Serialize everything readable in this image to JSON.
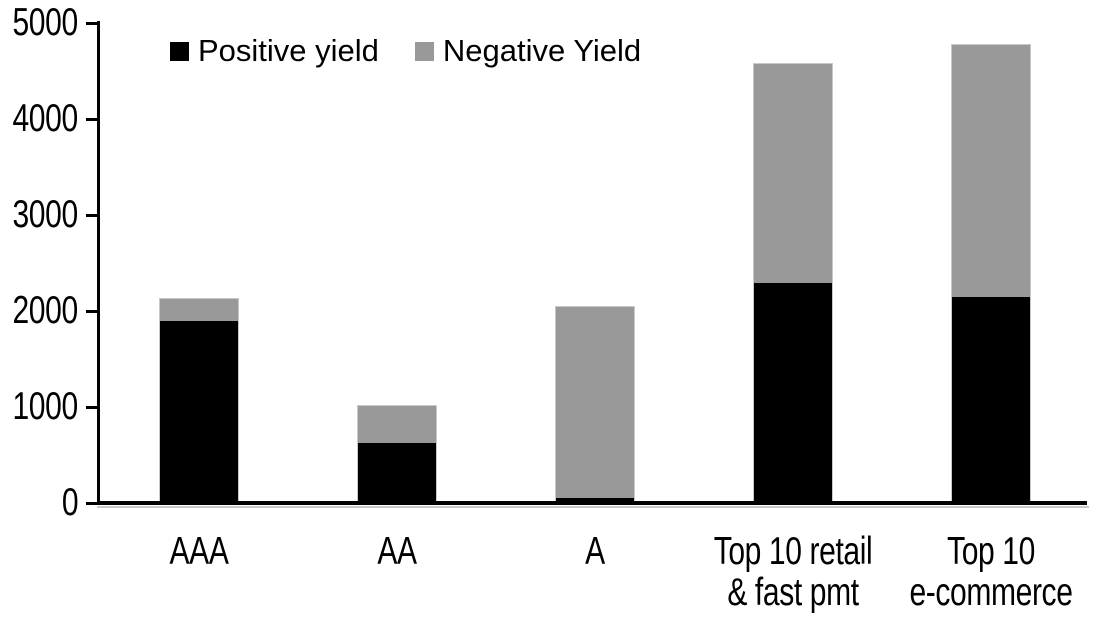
{
  "chart_data": {
    "type": "bar",
    "stacked": true,
    "title": "",
    "xlabel": "",
    "ylabel": "",
    "categories": [
      "AAA",
      "AA",
      "A",
      "Top 10 retail\n& fast pmt",
      "Top 10\ne-commerce"
    ],
    "series": [
      {
        "name": "Positive yield",
        "color": "#000000",
        "values": [
          1900,
          630,
          50,
          2290,
          2150
        ]
      },
      {
        "name": "Negative Yield",
        "color": "#999999",
        "values": [
          230,
          380,
          1990,
          2280,
          2620
        ]
      }
    ],
    "ylim": [
      0,
      5000
    ],
    "yticks": [
      0,
      1000,
      2000,
      3000,
      4000,
      5000
    ],
    "grid": false,
    "legend_position": "top-left-inside"
  },
  "colors": {
    "positive_series": "#000000",
    "negative_series": "#999999",
    "axis": "#000000",
    "bar_border": "#c9c9c9",
    "background": "#ffffff"
  }
}
